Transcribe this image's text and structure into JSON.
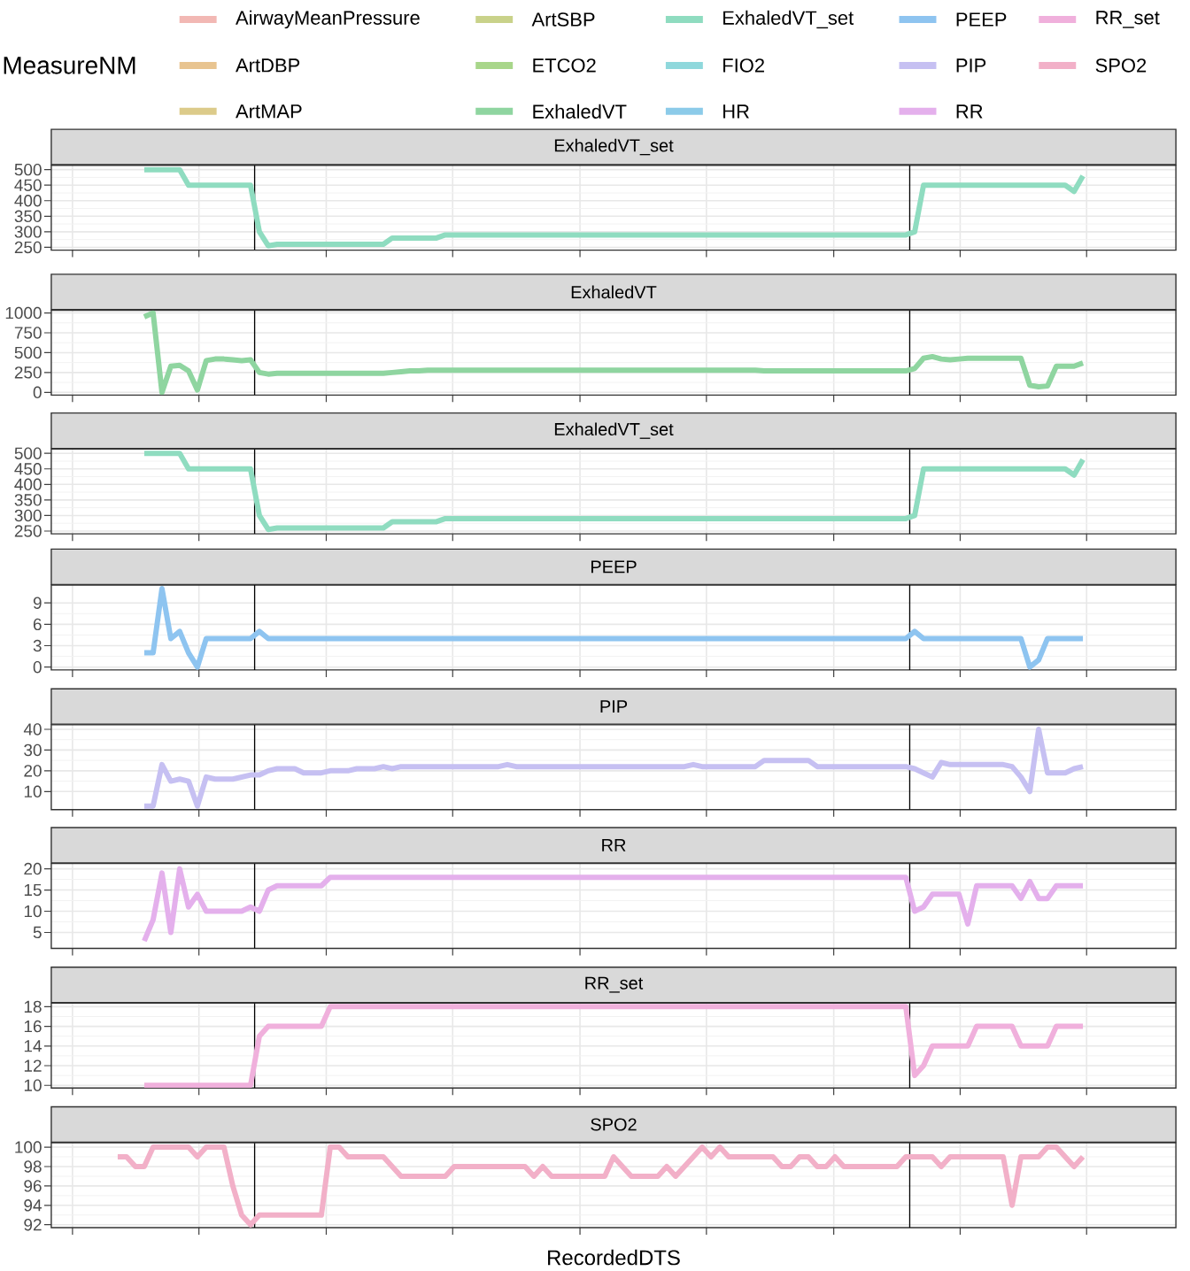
{
  "chart_data": [
    {
      "type": "other",
      "legend_title": "MeasureNM",
      "legend": "top",
      "series": [
        {
          "name": "AirwayMeanPressure",
          "color": "#f2b8b4"
        },
        {
          "name": "ArtDBP",
          "color": "#e8c490"
        },
        {
          "name": "ArtMAP",
          "color": "#dccb8a"
        },
        {
          "name": "ArtSBP",
          "color": "#c9d28a"
        },
        {
          "name": "ETCO2",
          "color": "#a8d68a"
        },
        {
          "name": "ExhaledVT",
          "color": "#8fd5a0"
        },
        {
          "name": "ExhaledVT_set",
          "color": "#8fdcc0"
        },
        {
          "name": "FIO2",
          "color": "#8fd8dc"
        },
        {
          "name": "HR",
          "color": "#8ccbe9"
        },
        {
          "name": "PEEP",
          "color": "#8ec4f0"
        },
        {
          "name": "PIP",
          "color": "#c6c0f2"
        },
        {
          "name": "RR",
          "color": "#e4b0ec"
        },
        {
          "name": "RR_set",
          "color": "#f0b0dc"
        },
        {
          "name": "SPO2",
          "color": "#f2b0c8"
        }
      ]
    },
    {
      "type": "line",
      "title": "ExhaledVT_set",
      "categories": [
        null,
        null,
        null,
        null,
        null,
        null,
        null,
        null,
        null,
        null,
        null,
        null,
        null,
        null,
        null,
        null,
        null,
        null,
        null,
        null,
        null,
        null,
        null,
        null,
        null,
        null,
        null,
        null,
        null,
        null,
        null,
        null,
        null,
        null,
        null,
        null,
        null,
        null,
        null,
        null,
        null,
        null,
        null,
        null,
        null,
        null,
        null,
        null,
        null,
        null,
        null,
        null,
        null,
        null,
        null,
        null,
        null,
        null,
        null,
        null,
        null,
        null,
        null,
        null,
        null,
        null,
        null,
        null,
        null,
        null,
        null,
        null,
        null,
        null,
        null,
        null,
        null,
        null,
        null,
        null,
        null,
        null,
        null,
        null,
        null,
        null,
        null,
        null,
        null,
        null,
        null,
        null,
        null,
        null,
        null,
        null,
        null,
        null,
        null,
        null,
        null,
        null,
        null,
        null,
        null,
        null,
        null,
        null,
        null,
        null,
        null,
        null,
        null,
        null,
        null,
        null,
        null,
        null,
        null,
        null,
        null,
        null,
        null,
        null,
        null,
        null,
        null
      ],
      "ylim": [
        241,
        514
      ],
      "yticks": [
        250,
        300,
        350,
        400,
        450,
        500
      ],
      "grid": true,
      "tick_labels": "y",
      "series": [
        {
          "color": "#8fdcc0",
          "values": [
            null,
            null,
            null,
            null,
            null,
            null,
            null,
            null,
            null,
            null,
            500,
            500,
            500,
            500,
            500,
            450,
            450,
            450,
            450,
            450,
            450,
            450,
            450,
            300,
            255,
            260,
            260,
            260,
            260,
            260,
            260,
            260,
            260,
            260,
            260,
            260,
            260,
            260,
            280,
            280,
            280,
            280,
            280,
            280,
            290,
            290,
            290,
            290,
            290,
            290,
            290,
            290,
            290,
            290,
            290,
            290,
            290,
            290,
            290,
            290,
            290,
            290,
            290,
            290,
            290,
            290,
            290,
            290,
            290,
            290,
            290,
            290,
            290,
            290,
            290,
            290,
            290,
            290,
            290,
            290,
            290,
            290,
            290,
            290,
            290,
            290,
            290,
            290,
            290,
            290,
            290,
            290,
            290,
            290,
            290,
            290,
            290,
            300,
            450,
            450,
            450,
            450,
            450,
            450,
            450,
            450,
            450,
            450,
            450,
            450,
            450,
            450,
            450,
            450,
            450,
            430,
            480,
            null,
            null,
            null,
            null,
            null,
            null,
            null,
            null,
            null,
            null
          ]
        }
      ]
    },
    {
      "type": "line",
      "title": "ExhaledVT",
      "categories": [
        null,
        null,
        null,
        null,
        null,
        null,
        null,
        null,
        null,
        null,
        null,
        null,
        null,
        null,
        null,
        null,
        null,
        null,
        null,
        null,
        null,
        null,
        null,
        null,
        null,
        null,
        null,
        null,
        null,
        null,
        null,
        null,
        null,
        null,
        null,
        null,
        null,
        null,
        null,
        null,
        null,
        null,
        null,
        null,
        null,
        null,
        null,
        null,
        null,
        null,
        null,
        null,
        null,
        null,
        null,
        null,
        null,
        null,
        null,
        null,
        null,
        null,
        null,
        null,
        null,
        null,
        null,
        null,
        null,
        null,
        null,
        null,
        null,
        null,
        null,
        null,
        null,
        null,
        null,
        null,
        null,
        null,
        null,
        null,
        null,
        null,
        null,
        null,
        null,
        null,
        null,
        null,
        null,
        null,
        null,
        null,
        null,
        null,
        null,
        null,
        null,
        null,
        null,
        null,
        null,
        null,
        null,
        null,
        null,
        null,
        null,
        null,
        null,
        null,
        null,
        null,
        null,
        null,
        null,
        null,
        null,
        null,
        null,
        null,
        null,
        null,
        null
      ],
      "ylim": [
        -34,
        1034
      ],
      "yticks": [
        0,
        250,
        500,
        750,
        1000
      ],
      "grid": true,
      "tick_labels": "y",
      "series": [
        {
          "color": "#8fd5a0",
          "values": [
            null,
            null,
            null,
            null,
            null,
            null,
            null,
            null,
            null,
            null,
            950,
            1000,
            0,
            330,
            340,
            270,
            30,
            400,
            420,
            420,
            410,
            400,
            410,
            250,
            230,
            240,
            240,
            240,
            240,
            240,
            240,
            240,
            240,
            240,
            240,
            240,
            240,
            240,
            250,
            260,
            270,
            270,
            280,
            280,
            280,
            280,
            280,
            280,
            280,
            280,
            280,
            280,
            280,
            280,
            280,
            280,
            280,
            280,
            280,
            280,
            280,
            280,
            280,
            280,
            280,
            280,
            280,
            280,
            280,
            280,
            280,
            280,
            280,
            280,
            280,
            280,
            280,
            280,
            280,
            280,
            270,
            270,
            270,
            270,
            270,
            270,
            270,
            270,
            270,
            270,
            270,
            270,
            270,
            270,
            270,
            270,
            270,
            300,
            430,
            450,
            420,
            410,
            420,
            430,
            430,
            430,
            430,
            430,
            430,
            430,
            90,
            70,
            80,
            330,
            330,
            330,
            370,
            null,
            null,
            null,
            null,
            null,
            null,
            null,
            null,
            null,
            null
          ]
        }
      ]
    },
    {
      "type": "line",
      "title": "ExhaledVT_set",
      "categories": [
        null,
        null,
        null,
        null,
        null,
        null,
        null,
        null,
        null,
        null,
        null,
        null,
        null,
        null,
        null,
        null,
        null,
        null,
        null,
        null,
        null,
        null,
        null,
        null,
        null,
        null,
        null,
        null,
        null,
        null,
        null,
        null,
        null,
        null,
        null,
        null,
        null,
        null,
        null,
        null,
        null,
        null,
        null,
        null,
        null,
        null,
        null,
        null,
        null,
        null,
        null,
        null,
        null,
        null,
        null,
        null,
        null,
        null,
        null,
        null,
        null,
        null,
        null,
        null,
        null,
        null,
        null,
        null,
        null,
        null,
        null,
        null,
        null,
        null,
        null,
        null,
        null,
        null,
        null,
        null,
        null,
        null,
        null,
        null,
        null,
        null,
        null,
        null,
        null,
        null,
        null,
        null,
        null,
        null,
        null,
        null,
        null,
        null,
        null,
        null,
        null,
        null,
        null,
        null,
        null,
        null,
        null,
        null,
        null,
        null,
        null,
        null,
        null,
        null,
        null,
        null,
        null,
        null,
        null,
        null,
        null,
        null,
        null,
        null,
        null,
        null,
        null
      ],
      "ylim": [
        241,
        514
      ],
      "yticks": [
        250,
        300,
        350,
        400,
        450,
        500
      ],
      "grid": true,
      "tick_labels": "y",
      "series": [
        {
          "color": "#8fdcc0",
          "values": [
            null,
            null,
            null,
            null,
            null,
            null,
            null,
            null,
            null,
            null,
            500,
            500,
            500,
            500,
            500,
            450,
            450,
            450,
            450,
            450,
            450,
            450,
            450,
            300,
            255,
            260,
            260,
            260,
            260,
            260,
            260,
            260,
            260,
            260,
            260,
            260,
            260,
            260,
            280,
            280,
            280,
            280,
            280,
            280,
            290,
            290,
            290,
            290,
            290,
            290,
            290,
            290,
            290,
            290,
            290,
            290,
            290,
            290,
            290,
            290,
            290,
            290,
            290,
            290,
            290,
            290,
            290,
            290,
            290,
            290,
            290,
            290,
            290,
            290,
            290,
            290,
            290,
            290,
            290,
            290,
            290,
            290,
            290,
            290,
            290,
            290,
            290,
            290,
            290,
            290,
            290,
            290,
            290,
            290,
            290,
            290,
            290,
            300,
            450,
            450,
            450,
            450,
            450,
            450,
            450,
            450,
            450,
            450,
            450,
            450,
            450,
            450,
            450,
            450,
            450,
            430,
            480,
            null,
            null,
            null,
            null,
            null,
            null,
            null,
            null,
            null,
            null
          ]
        }
      ]
    },
    {
      "type": "line",
      "title": "PEEP",
      "categories": [
        null,
        null,
        null,
        null,
        null,
        null,
        null,
        null,
        null,
        null,
        null,
        null,
        null,
        null,
        null,
        null,
        null,
        null,
        null,
        null,
        null,
        null,
        null,
        null,
        null,
        null,
        null,
        null,
        null,
        null,
        null,
        null,
        null,
        null,
        null,
        null,
        null,
        null,
        null,
        null,
        null,
        null,
        null,
        null,
        null,
        null,
        null,
        null,
        null,
        null,
        null,
        null,
        null,
        null,
        null,
        null,
        null,
        null,
        null,
        null,
        null,
        null,
        null,
        null,
        null,
        null,
        null,
        null,
        null,
        null,
        null,
        null,
        null,
        null,
        null,
        null,
        null,
        null,
        null,
        null,
        null,
        null,
        null,
        null,
        null,
        null,
        null,
        null,
        null,
        null,
        null,
        null,
        null,
        null,
        null,
        null,
        null,
        null,
        null,
        null,
        null,
        null,
        null,
        null,
        null,
        null,
        null,
        null,
        null,
        null,
        null,
        null,
        null,
        null,
        null,
        null,
        null,
        null,
        null,
        null,
        null,
        null,
        null,
        null,
        null,
        null,
        null
      ],
      "ylim": [
        -0.4,
        11.5
      ],
      "yticks": [
        0,
        3,
        6,
        9
      ],
      "grid": true,
      "tick_labels": "y",
      "series": [
        {
          "color": "#8ec4f0",
          "values": [
            null,
            null,
            null,
            null,
            null,
            null,
            null,
            null,
            null,
            null,
            2,
            2,
            11,
            4,
            5,
            2,
            0,
            4,
            4,
            4,
            4,
            4,
            4,
            5,
            4,
            4,
            4,
            4,
            4,
            4,
            4,
            4,
            4,
            4,
            4,
            4,
            4,
            4,
            4,
            4,
            4,
            4,
            4,
            4,
            4,
            4,
            4,
            4,
            4,
            4,
            4,
            4,
            4,
            4,
            4,
            4,
            4,
            4,
            4,
            4,
            4,
            4,
            4,
            4,
            4,
            4,
            4,
            4,
            4,
            4,
            4,
            4,
            4,
            4,
            4,
            4,
            4,
            4,
            4,
            4,
            4,
            4,
            4,
            4,
            4,
            4,
            4,
            4,
            4,
            4,
            4,
            4,
            4,
            4,
            4,
            4,
            4,
            5,
            4,
            4,
            4,
            4,
            4,
            4,
            4,
            4,
            4,
            4,
            4,
            4,
            0,
            1,
            4,
            4,
            4,
            4,
            4,
            null,
            null,
            null,
            null,
            null,
            null,
            null,
            null,
            null,
            null
          ]
        }
      ]
    },
    {
      "type": "line",
      "title": "PIP",
      "categories": [
        null,
        null,
        null,
        null,
        null,
        null,
        null,
        null,
        null,
        null,
        null,
        null,
        null,
        null,
        null,
        null,
        null,
        null,
        null,
        null,
        null,
        null,
        null,
        null,
        null,
        null,
        null,
        null,
        null,
        null,
        null,
        null,
        null,
        null,
        null,
        null,
        null,
        null,
        null,
        null,
        null,
        null,
        null,
        null,
        null,
        null,
        null,
        null,
        null,
        null,
        null,
        null,
        null,
        null,
        null,
        null,
        null,
        null,
        null,
        null,
        null,
        null,
        null,
        null,
        null,
        null,
        null,
        null,
        null,
        null,
        null,
        null,
        null,
        null,
        null,
        null,
        null,
        null,
        null,
        null,
        null,
        null,
        null,
        null,
        null,
        null,
        null,
        null,
        null,
        null,
        null,
        null,
        null,
        null,
        null,
        null,
        null,
        null,
        null,
        null,
        null,
        null,
        null,
        null,
        null,
        null,
        null,
        null,
        null,
        null,
        null,
        null,
        null,
        null,
        null,
        null,
        null,
        null,
        null,
        null,
        null,
        null,
        null,
        null,
        null,
        null,
        null
      ],
      "ylim": [
        1.3,
        42.2
      ],
      "yticks": [
        10,
        20,
        30,
        40
      ],
      "grid": true,
      "tick_labels": "y",
      "series": [
        {
          "color": "#c6c0f2",
          "values": [
            null,
            null,
            null,
            null,
            null,
            null,
            null,
            null,
            null,
            null,
            3,
            3,
            23,
            15,
            16,
            15,
            3,
            17,
            16,
            16,
            16,
            17,
            18,
            18,
            20,
            21,
            21,
            21,
            19,
            19,
            19,
            20,
            20,
            20,
            21,
            21,
            21,
            22,
            21,
            22,
            22,
            22,
            22,
            22,
            22,
            22,
            22,
            22,
            22,
            22,
            22,
            23,
            22,
            22,
            22,
            22,
            22,
            22,
            22,
            22,
            22,
            22,
            22,
            22,
            22,
            22,
            22,
            22,
            22,
            22,
            22,
            22,
            23,
            22,
            22,
            22,
            22,
            22,
            22,
            22,
            25,
            25,
            25,
            25,
            25,
            25,
            22,
            22,
            22,
            22,
            22,
            22,
            22,
            22,
            22,
            22,
            22,
            21,
            19,
            17,
            24,
            23,
            23,
            23,
            23,
            23,
            23,
            23,
            22,
            17,
            10,
            40,
            19,
            19,
            19,
            21,
            22,
            null,
            null,
            null,
            null,
            null,
            null,
            null,
            null,
            null,
            null
          ]
        }
      ]
    },
    {
      "type": "line",
      "title": "RR",
      "categories": [
        null,
        null,
        null,
        null,
        null,
        null,
        null,
        null,
        null,
        null,
        null,
        null,
        null,
        null,
        null,
        null,
        null,
        null,
        null,
        null,
        null,
        null,
        null,
        null,
        null,
        null,
        null,
        null,
        null,
        null,
        null,
        null,
        null,
        null,
        null,
        null,
        null,
        null,
        null,
        null,
        null,
        null,
        null,
        null,
        null,
        null,
        null,
        null,
        null,
        null,
        null,
        null,
        null,
        null,
        null,
        null,
        null,
        null,
        null,
        null,
        null,
        null,
        null,
        null,
        null,
        null,
        null,
        null,
        null,
        null,
        null,
        null,
        null,
        null,
        null,
        null,
        null,
        null,
        null,
        null,
        null,
        null,
        null,
        null,
        null,
        null,
        null,
        null,
        null,
        null,
        null,
        null,
        null,
        null,
        null,
        null,
        null,
        null,
        null,
        null,
        null,
        null,
        null,
        null,
        null,
        null,
        null,
        null,
        null,
        null,
        null,
        null,
        null,
        null,
        null,
        null,
        null,
        null,
        null,
        null,
        null,
        null,
        null,
        null,
        null,
        null,
        null
      ],
      "ylim": [
        1.25,
        21.25
      ],
      "yticks": [
        5,
        10,
        15,
        20
      ],
      "grid": true,
      "tick_labels": "y",
      "series": [
        {
          "color": "#e4b0ec",
          "values": [
            null,
            null,
            null,
            null,
            null,
            null,
            null,
            null,
            null,
            null,
            3,
            8,
            19,
            5,
            20,
            11,
            14,
            10,
            10,
            10,
            10,
            10,
            11,
            10,
            15,
            16,
            16,
            16,
            16,
            16,
            16,
            18,
            18,
            18,
            18,
            18,
            18,
            18,
            18,
            18,
            18,
            18,
            18,
            18,
            18,
            18,
            18,
            18,
            18,
            18,
            18,
            18,
            18,
            18,
            18,
            18,
            18,
            18,
            18,
            18,
            18,
            18,
            18,
            18,
            18,
            18,
            18,
            18,
            18,
            18,
            18,
            18,
            18,
            18,
            18,
            18,
            18,
            18,
            18,
            18,
            18,
            18,
            18,
            18,
            18,
            18,
            18,
            18,
            18,
            18,
            18,
            18,
            18,
            18,
            18,
            18,
            18,
            10,
            11,
            14,
            14,
            14,
            14,
            7,
            16,
            16,
            16,
            16,
            16,
            13,
            17,
            13,
            13,
            16,
            16,
            16,
            16,
            null,
            null,
            null,
            null,
            null,
            null,
            null,
            null,
            null,
            null
          ]
        }
      ]
    },
    {
      "type": "line",
      "title": "RR_set",
      "categories": [
        null,
        null,
        null,
        null,
        null,
        null,
        null,
        null,
        null,
        null,
        null,
        null,
        null,
        null,
        null,
        null,
        null,
        null,
        null,
        null,
        null,
        null,
        null,
        null,
        null,
        null,
        null,
        null,
        null,
        null,
        null,
        null,
        null,
        null,
        null,
        null,
        null,
        null,
        null,
        null,
        null,
        null,
        null,
        null,
        null,
        null,
        null,
        null,
        null,
        null,
        null,
        null,
        null,
        null,
        null,
        null,
        null,
        null,
        null,
        null,
        null,
        null,
        null,
        null,
        null,
        null,
        null,
        null,
        null,
        null,
        null,
        null,
        null,
        null,
        null,
        null,
        null,
        null,
        null,
        null,
        null,
        null,
        null,
        null,
        null,
        null,
        null,
        null,
        null,
        null,
        null,
        null,
        null,
        null,
        null,
        null,
        null,
        null,
        null,
        null,
        null,
        null,
        null,
        null,
        null,
        null,
        null,
        null,
        null,
        null,
        null,
        null,
        null,
        null,
        null,
        null,
        null,
        null,
        null,
        null,
        null,
        null,
        null,
        null,
        null,
        null,
        null
      ],
      "ylim": [
        9.73,
        18.36
      ],
      "yticks": [
        10,
        12,
        14,
        16,
        18
      ],
      "grid": true,
      "tick_labels": "y",
      "series": [
        {
          "color": "#f0b0dc",
          "values": [
            null,
            null,
            null,
            null,
            null,
            null,
            null,
            null,
            null,
            null,
            10,
            10,
            10,
            10,
            10,
            10,
            10,
            10,
            10,
            10,
            10,
            10,
            10,
            15,
            16,
            16,
            16,
            16,
            16,
            16,
            16,
            18,
            18,
            18,
            18,
            18,
            18,
            18,
            18,
            18,
            18,
            18,
            18,
            18,
            18,
            18,
            18,
            18,
            18,
            18,
            18,
            18,
            18,
            18,
            18,
            18,
            18,
            18,
            18,
            18,
            18,
            18,
            18,
            18,
            18,
            18,
            18,
            18,
            18,
            18,
            18,
            18,
            18,
            18,
            18,
            18,
            18,
            18,
            18,
            18,
            18,
            18,
            18,
            18,
            18,
            18,
            18,
            18,
            18,
            18,
            18,
            18,
            18,
            18,
            18,
            18,
            18,
            11,
            12,
            14,
            14,
            14,
            14,
            14,
            16,
            16,
            16,
            16,
            16,
            14,
            14,
            14,
            14,
            16,
            16,
            16,
            16,
            null,
            null,
            null,
            null,
            null,
            null,
            null,
            null,
            null,
            null
          ]
        }
      ]
    },
    {
      "type": "line",
      "title": "SPO2",
      "xlabel": "RecordedDTS",
      "categories": [
        null,
        null,
        null,
        null,
        null,
        null,
        null,
        null,
        null,
        null,
        null,
        null,
        null,
        null,
        null,
        null,
        null,
        null,
        null,
        null,
        null,
        null,
        null,
        null,
        null,
        null,
        null,
        null,
        null,
        null,
        null,
        null,
        null,
        null,
        null,
        null,
        null,
        null,
        null,
        null,
        null,
        null,
        null,
        null,
        null,
        null,
        null,
        null,
        null,
        null,
        null,
        null,
        null,
        null,
        null,
        null,
        null,
        null,
        null,
        null,
        null,
        null,
        null,
        null,
        null,
        null,
        null,
        null,
        null,
        null,
        null,
        null,
        null,
        null,
        null,
        null,
        null,
        null,
        null,
        null,
        null,
        null,
        null,
        null,
        null,
        null,
        null,
        null,
        null,
        null,
        null,
        null,
        null,
        null,
        null,
        null,
        null,
        null,
        null,
        null,
        null,
        null,
        null,
        null,
        null,
        null,
        null,
        null,
        null,
        null,
        null,
        null,
        null,
        null,
        null,
        null,
        null,
        null,
        null,
        null,
        null,
        null,
        null,
        null,
        null,
        null,
        null
      ],
      "ylim": [
        91.7,
        100.45
      ],
      "yticks": [
        92,
        94,
        96,
        98,
        100
      ],
      "grid": true,
      "tick_labels": "y",
      "series": [
        {
          "color": "#f2b0c8",
          "values": [
            null,
            null,
            null,
            null,
            null,
            null,
            null,
            99,
            99,
            98,
            98,
            100,
            100,
            100,
            100,
            100,
            99,
            100,
            100,
            100,
            96,
            93,
            92,
            93,
            93,
            93,
            93,
            93,
            93,
            93,
            93,
            100,
            100,
            99,
            99,
            99,
            99,
            99,
            98,
            97,
            97,
            97,
            97,
            97,
            97,
            98,
            98,
            98,
            98,
            98,
            98,
            98,
            98,
            98,
            97,
            98,
            97,
            97,
            97,
            97,
            97,
            97,
            97,
            99,
            98,
            97,
            97,
            97,
            97,
            98,
            97,
            98,
            99,
            100,
            99,
            100,
            99,
            99,
            99,
            99,
            99,
            99,
            98,
            98,
            99,
            99,
            98,
            98,
            99,
            98,
            98,
            98,
            98,
            98,
            98,
            98,
            99,
            99,
            99,
            99,
            98,
            99,
            99,
            99,
            99,
            99,
            99,
            99,
            94,
            99,
            99,
            99,
            100,
            100,
            99,
            98,
            99,
            null,
            null,
            null,
            null,
            null,
            null,
            null,
            null,
            null,
            null
          ]
        }
      ]
    }
  ]
}
